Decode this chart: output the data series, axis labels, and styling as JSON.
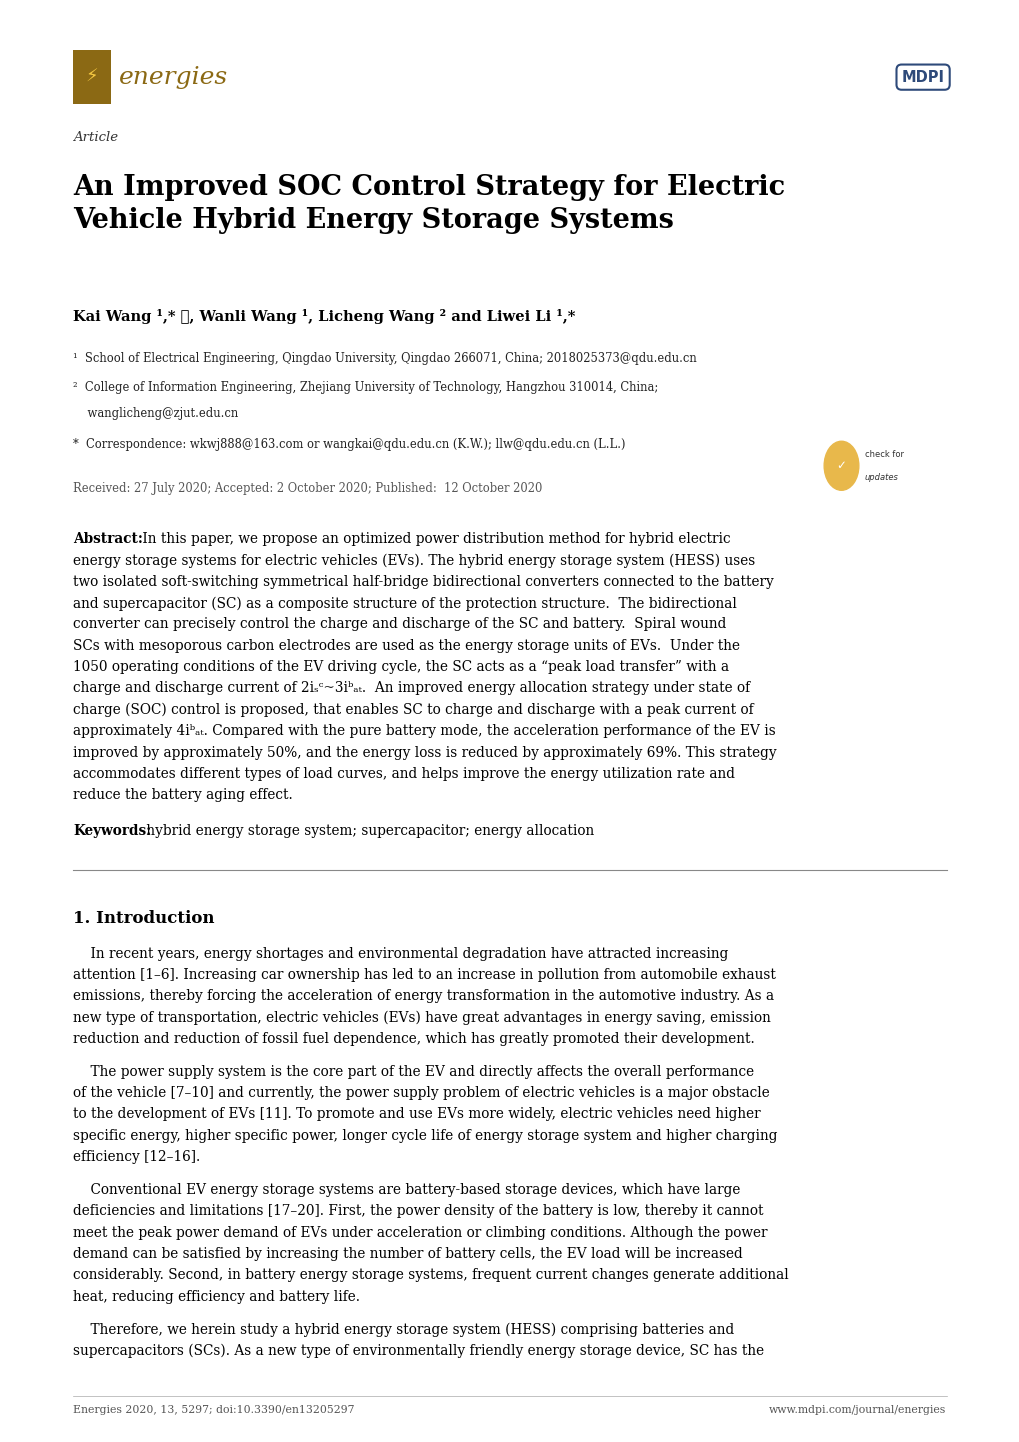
{
  "page_width": 10.2,
  "page_height": 14.42,
  "bg_color": "#ffffff",
  "header": {
    "journal_name": "energies",
    "journal_color": "#8B6914",
    "logo_bg": "#8B6914",
    "mdpi_color": "#2E4A7A"
  },
  "article_label": "Article",
  "title": "An Improved SOC Control Strategy for Electric\nVehicle Hybrid Energy Storage Systems",
  "authors": "Kai Wang ¹,* ⓘ, Wanli Wang ¹, Licheng Wang ² and Liwei Li ¹,*",
  "affiliation1": "¹  School of Electrical Engineering, Qingdao University, Qingdao 266071, China; 2018025373@qdu.edu.cn",
  "affiliation2_line1": "²  College of Information Engineering, Zhejiang University of Technology, Hangzhou 310014, China;",
  "affiliation2_line2": "    wanglicheng@zjut.edu.cn",
  "correspondence": "*  Correspondence: wkwj888@163.com or wangkai@qdu.edu.cn (K.W.); llw@qdu.edu.cn (L.L.)",
  "received": "Received: 27 July 2020; Accepted: 2 October 2020; Published:  12 October 2020",
  "keywords_text": " hybrid energy storage system; supercapacitor; energy allocation",
  "section1_title": "1. Introduction",
  "footer_left": "Energies 2020, 13, 5297; doi:10.3390/en13205297",
  "footer_right": "www.mdpi.com/journal/energies",
  "text_color": "#000000",
  "abstract_lines": [
    "Abstract: In this paper, we propose an optimized power distribution method for hybrid electric",
    "energy storage systems for electric vehicles (EVs). The hybrid energy storage system (HESS) uses",
    "two isolated soft-switching symmetrical half-bridge bidirectional converters connected to the battery",
    "and supercapacitor (SC) as a composite structure of the protection structure.  The bidirectional",
    "converter can precisely control the charge and discharge of the SC and battery.  Spiral wound",
    "SCs with mesoporous carbon electrodes are used as the energy storage units of EVs.  Under the",
    "1050 operating conditions of the EV driving cycle, the SC acts as a “peak load transfer” with a",
    "charge and discharge current of 2iₛᶜ~3iᵇₐₜ.  An improved energy allocation strategy under state of",
    "charge (SOC) control is proposed, that enables SC to charge and discharge with a peak current of",
    "approximately 4iᵇₐₜ. Compared with the pure battery mode, the acceleration performance of the EV is",
    "improved by approximately 50%, and the energy loss is reduced by approximately 69%. This strategy",
    "accommodates different types of load curves, and helps improve the energy utilization rate and",
    "reduce the battery aging effect."
  ],
  "para1_lines": [
    "    In recent years, energy shortages and environmental degradation have attracted increasing",
    "attention [1–6]. Increasing car ownership has led to an increase in pollution from automobile exhaust",
    "emissions, thereby forcing the acceleration of energy transformation in the automotive industry. As a",
    "new type of transportation, electric vehicles (EVs) have great advantages in energy saving, emission",
    "reduction and reduction of fossil fuel dependence, which has greatly promoted their development."
  ],
  "para2_lines": [
    "    The power supply system is the core part of the EV and directly affects the overall performance",
    "of the vehicle [7–10] and currently, the power supply problem of electric vehicles is a major obstacle",
    "to the development of EVs [11]. To promote and use EVs more widely, electric vehicles need higher",
    "specific energy, higher specific power, longer cycle life of energy storage system and higher charging",
    "efficiency [12–16]."
  ],
  "para3_lines": [
    "    Conventional EV energy storage systems are battery-based storage devices, which have large",
    "deficiencies and limitations [17–20]. First, the power density of the battery is low, thereby it cannot",
    "meet the peak power demand of EVs under acceleration or climbing conditions. Although the power",
    "demand can be satisfied by increasing the number of battery cells, the EV load will be increased",
    "considerably. Second, in battery energy storage systems, frequent current changes generate additional",
    "heat, reducing efficiency and battery life."
  ],
  "para4_lines": [
    "    Therefore, we herein study a hybrid energy storage system (HESS) comprising batteries and",
    "supercapacitors (SCs). As a new type of environmentally friendly energy storage device, SC has the"
  ]
}
